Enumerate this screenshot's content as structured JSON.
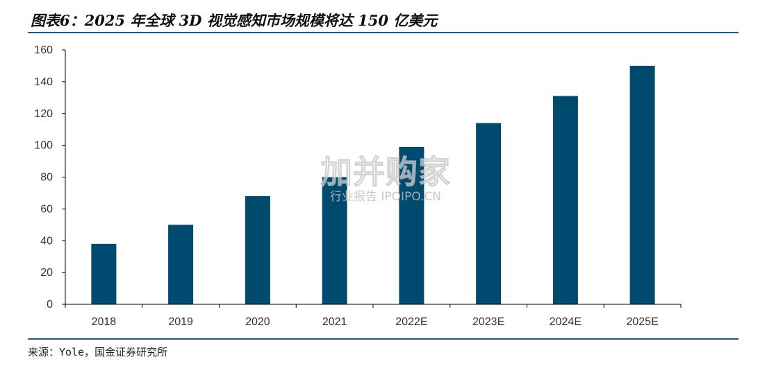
{
  "title": "图表6：2025 年全球 3D 视觉感知市场规模将达 150 亿美元",
  "source": "来源：Yole，国金证券研究所",
  "watermark": {
    "main": "加并购家",
    "sub": "行业报告 IPOIPO.CN"
  },
  "colors": {
    "bar": "#004a6f",
    "rule": "#1f5a7e",
    "axis": "#000000"
  },
  "chart_data": {
    "type": "bar",
    "categories": [
      "2018",
      "2019",
      "2020",
      "2021",
      "2022E",
      "2023E",
      "2024E",
      "2025E"
    ],
    "values": [
      38,
      50,
      68,
      80,
      99,
      114,
      131,
      150
    ],
    "yticks": [
      0,
      20,
      40,
      60,
      80,
      100,
      120,
      140,
      160
    ],
    "ylim": [
      0,
      160
    ],
    "title": "图表6：2025 年全球 3D 视觉感知市场规模将达 150 亿美元",
    "xlabel": "",
    "ylabel": "",
    "grid": false,
    "legend": "none"
  }
}
